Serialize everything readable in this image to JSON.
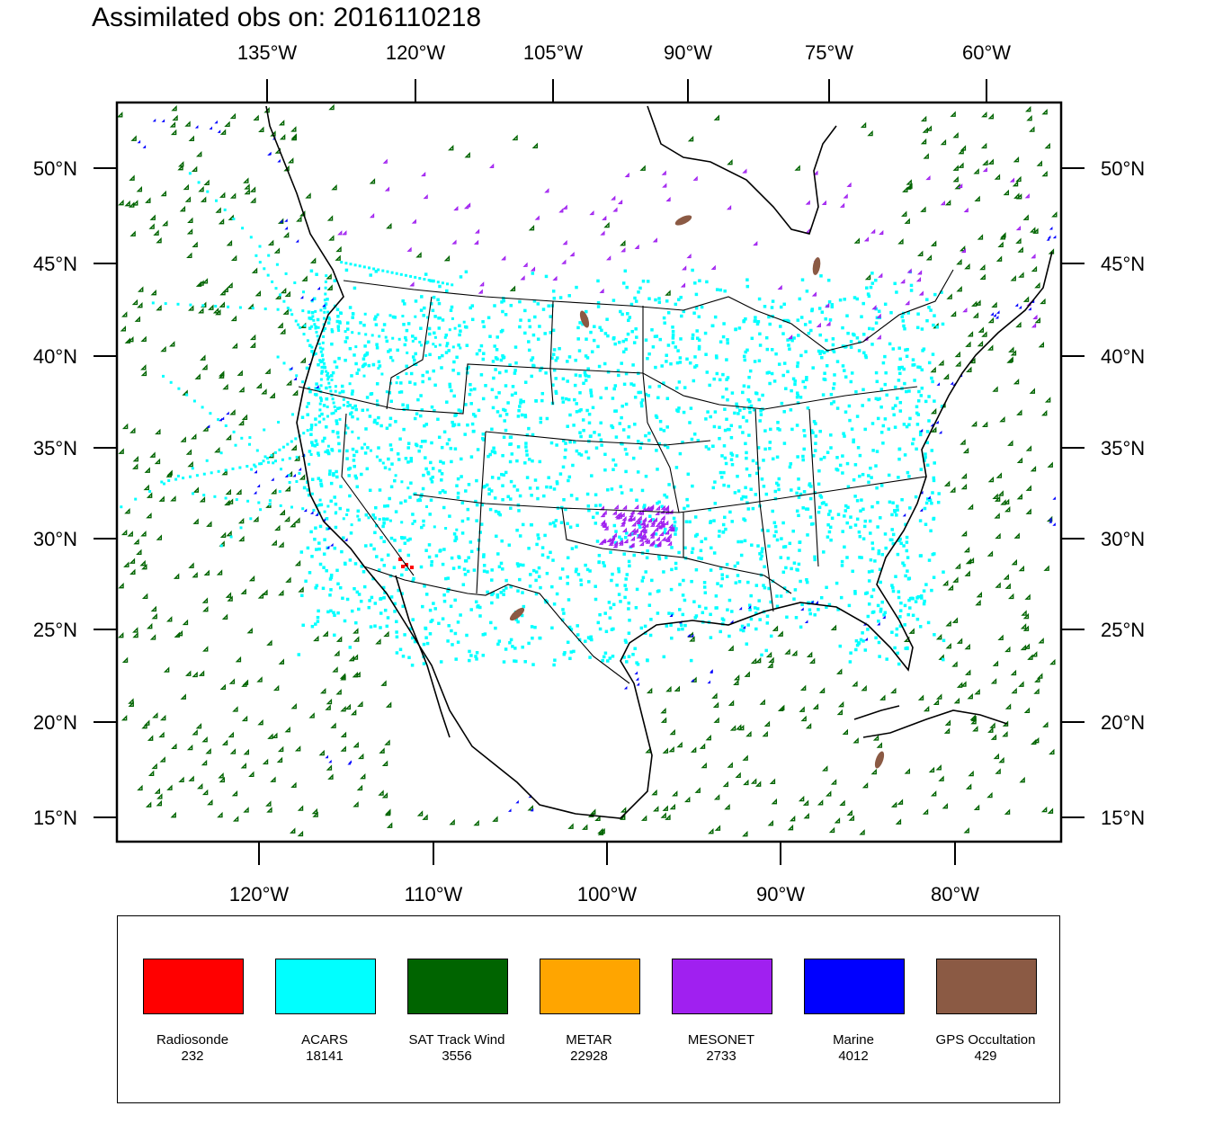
{
  "title": "Assimilated obs on: 2016110218",
  "top_lon_ticks": [
    "135°W",
    "120°W",
    "105°W",
    "90°W",
    "75°W",
    "60°W"
  ],
  "bottom_lon_ticks": [
    "120°W",
    "110°W",
    "100°W",
    "90°W",
    "80°W"
  ],
  "lat_ticks": [
    "50°N",
    "45°N",
    "40°N",
    "35°N",
    "30°N",
    "25°N",
    "20°N",
    "15°N"
  ],
  "colors": {
    "land_outline": "#000000",
    "radiosonde": "#ff0000",
    "acars": "#00ffff",
    "sat_track_wind": "#006400",
    "metar": "#ffa500",
    "mesonet": "#a020f0",
    "marine": "#0000ff",
    "gps": "#8b5a44"
  },
  "legend": [
    {
      "label": "Radiosonde",
      "count": "232",
      "color": "#ff0000"
    },
    {
      "label": "ACARS",
      "count": "18141",
      "color": "#00ffff"
    },
    {
      "label": "SAT Track Wind",
      "count": "3556",
      "color": "#006400"
    },
    {
      "label": "METAR",
      "count": "22928",
      "color": "#ffa500"
    },
    {
      "label": "MESONET",
      "count": "2733",
      "color": "#a020f0"
    },
    {
      "label": "Marine",
      "count": "4012",
      "color": "#0000ff"
    },
    {
      "label": "GPS Occultation",
      "count": "429",
      "color": "#8b5a44"
    }
  ]
}
